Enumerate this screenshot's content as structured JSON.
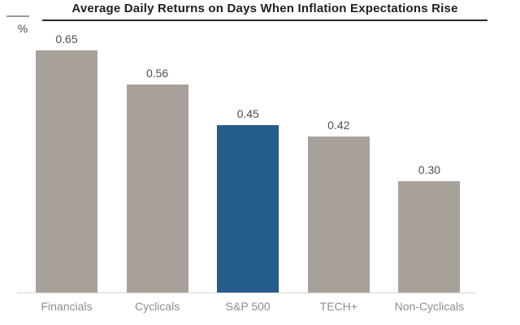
{
  "chart_data": {
    "type": "bar",
    "title": "Average Daily Returns on Days When Inflation Expectations Rise",
    "unit_label": "%",
    "categories": [
      "Financials",
      "Cyclicals",
      "S&P 500",
      "TECH+",
      "Non-Cyclicals"
    ],
    "values": [
      0.65,
      0.56,
      0.45,
      0.42,
      0.3
    ],
    "value_labels": [
      "0.65",
      "0.56",
      "0.45",
      "0.42",
      "0.30"
    ],
    "highlight_category": "S&P 500",
    "xlabel": "",
    "ylabel": "%",
    "ylim": [
      0,
      0.72
    ],
    "grid": false,
    "legend": "none",
    "colors": {
      "bar": "#a8a19a",
      "highlight_bar": "#245d8b",
      "axis_line": "#d6d3d0",
      "value_label": "#4d4d4d",
      "category_label": "#8e8e8e",
      "title": "#1f1f1f"
    }
  }
}
